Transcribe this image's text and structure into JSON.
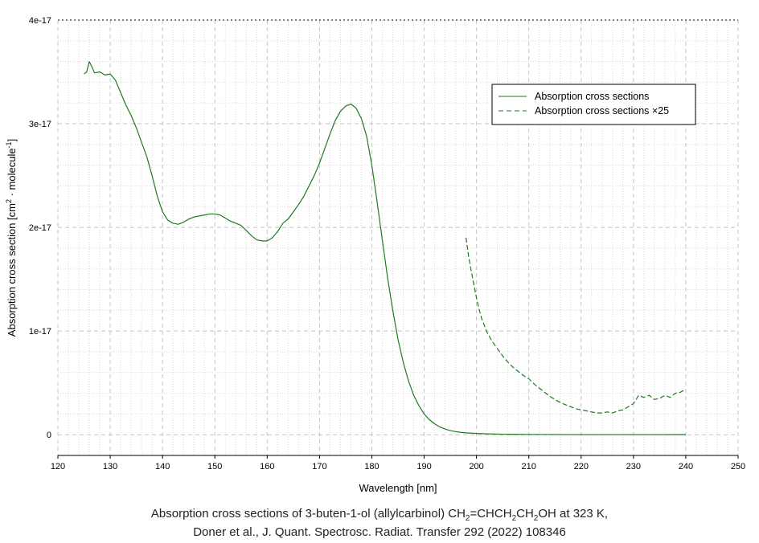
{
  "chart_data": {
    "type": "line",
    "xlabel": "Wavelength [nm]",
    "ylabel_main": "Absorption cross section [cm",
    "ylabel_sup1": "2",
    "ylabel_mid": " · molecule",
    "ylabel_sup2": "-1",
    "ylabel_end": "]",
    "xlim": [
      120,
      250
    ],
    "ylim": [
      -2e-18,
      4e-17
    ],
    "x_ticks": [
      120,
      130,
      140,
      150,
      160,
      170,
      180,
      190,
      200,
      210,
      220,
      230,
      240,
      250
    ],
    "y_ticks": [
      {
        "value": 0,
        "label": "0"
      },
      {
        "value": 1e-17,
        "label": "1e-17"
      },
      {
        "value": 2e-17,
        "label": "2e-17"
      },
      {
        "value": 3e-17,
        "label": "3e-17"
      },
      {
        "value": 4e-17,
        "label": "4e-17"
      }
    ],
    "grid": true,
    "legend_position": "top-right",
    "series": [
      {
        "name": "Absorption cross sections",
        "style": "solid",
        "color": "#1f7a1f",
        "points": [
          [
            125,
            3.48e-17
          ],
          [
            125.5,
            3.5e-17
          ],
          [
            126,
            3.6e-17
          ],
          [
            126.5,
            3.55e-17
          ],
          [
            127,
            3.49e-17
          ],
          [
            128,
            3.5e-17
          ],
          [
            129,
            3.47e-17
          ],
          [
            130,
            3.48e-17
          ],
          [
            131,
            3.42e-17
          ],
          [
            132,
            3.3e-17
          ],
          [
            133,
            3.18e-17
          ],
          [
            134,
            3.08e-17
          ],
          [
            135,
            2.96e-17
          ],
          [
            136,
            2.82e-17
          ],
          [
            137,
            2.68e-17
          ],
          [
            138,
            2.5e-17
          ],
          [
            139,
            2.3e-17
          ],
          [
            140,
            2.15e-17
          ],
          [
            141,
            2.07e-17
          ],
          [
            142,
            2.04e-17
          ],
          [
            143,
            2.03e-17
          ],
          [
            144,
            2.05e-17
          ],
          [
            145,
            2.08e-17
          ],
          [
            146,
            2.1e-17
          ],
          [
            147,
            2.11e-17
          ],
          [
            148,
            2.12e-17
          ],
          [
            149,
            2.13e-17
          ],
          [
            150,
            2.13e-17
          ],
          [
            151,
            2.12e-17
          ],
          [
            152,
            2.09e-17
          ],
          [
            153,
            2.06e-17
          ],
          [
            154,
            2.04e-17
          ],
          [
            155,
            2.02e-17
          ],
          [
            156,
            1.97e-17
          ],
          [
            157,
            1.92e-17
          ],
          [
            158,
            1.88e-17
          ],
          [
            159,
            1.87e-17
          ],
          [
            160,
            1.87e-17
          ],
          [
            161,
            1.9e-17
          ],
          [
            162,
            1.96e-17
          ],
          [
            163,
            2.04e-17
          ],
          [
            164,
            2.08e-17
          ],
          [
            165,
            2.15e-17
          ],
          [
            166,
            2.22e-17
          ],
          [
            167,
            2.3e-17
          ],
          [
            168,
            2.4e-17
          ],
          [
            169,
            2.5e-17
          ],
          [
            170,
            2.62e-17
          ],
          [
            171,
            2.76e-17
          ],
          [
            172,
            2.9e-17
          ],
          [
            173,
            3.03e-17
          ],
          [
            174,
            3.12e-17
          ],
          [
            175,
            3.17e-17
          ],
          [
            176,
            3.19e-17
          ],
          [
            177,
            3.15e-17
          ],
          [
            178,
            3.05e-17
          ],
          [
            179,
            2.88e-17
          ],
          [
            180,
            2.6e-17
          ],
          [
            181,
            2.25e-17
          ],
          [
            182,
            1.88e-17
          ],
          [
            183,
            1.52e-17
          ],
          [
            184,
            1.2e-17
          ],
          [
            185,
            9.2e-18
          ],
          [
            186,
            7e-18
          ],
          [
            187,
            5.2e-18
          ],
          [
            188,
            3.8e-18
          ],
          [
            189,
            2.8e-18
          ],
          [
            190,
            2e-18
          ],
          [
            191,
            1.45e-18
          ],
          [
            192,
            1.05e-18
          ],
          [
            193,
            7.5e-19
          ],
          [
            194,
            5.5e-19
          ],
          [
            195,
            4e-19
          ],
          [
            196,
            3e-19
          ],
          [
            197,
            2.3e-19
          ],
          [
            198,
            1.8e-19
          ],
          [
            200,
            1.2e-19
          ],
          [
            202,
            8e-20
          ],
          [
            205,
            5e-20
          ],
          [
            210,
            3e-20
          ],
          [
            215,
            2e-20
          ],
          [
            220,
            1e-20
          ],
          [
            225,
            1e-20
          ],
          [
            230,
            1e-20
          ],
          [
            235,
            1.2e-20
          ],
          [
            240,
            1.5e-20
          ]
        ]
      },
      {
        "name": "Absorption cross sections ×25",
        "style": "dashed",
        "color": "#1f7a1f",
        "points": [
          [
            198,
            1.9e-17
          ],
          [
            198.5,
            1.72e-17
          ],
          [
            199,
            1.58e-17
          ],
          [
            199.5,
            1.45e-17
          ],
          [
            200,
            1.32e-17
          ],
          [
            200.5,
            1.21e-17
          ],
          [
            201,
            1.12e-17
          ],
          [
            202,
            9.9e-18
          ],
          [
            203,
            9e-18
          ],
          [
            204,
            8.3e-18
          ],
          [
            205,
            7.6e-18
          ],
          [
            206,
            7e-18
          ],
          [
            207,
            6.5e-18
          ],
          [
            208,
            6.1e-18
          ],
          [
            209,
            5.7e-18
          ],
          [
            210,
            5.4e-18
          ],
          [
            211,
            4.9e-18
          ],
          [
            212,
            4.5e-18
          ],
          [
            213,
            4.1e-18
          ],
          [
            214,
            3.7e-18
          ],
          [
            215,
            3.4e-18
          ],
          [
            216,
            3.1e-18
          ],
          [
            217,
            2.9e-18
          ],
          [
            218,
            2.7e-18
          ],
          [
            219,
            2.5e-18
          ],
          [
            220,
            2.4e-18
          ],
          [
            221,
            2.3e-18
          ],
          [
            222,
            2.2e-18
          ],
          [
            223,
            2.1e-18
          ],
          [
            224,
            2.1e-18
          ],
          [
            225,
            2.2e-18
          ],
          [
            226,
            2.1e-18
          ],
          [
            227,
            2.3e-18
          ],
          [
            228,
            2.4e-18
          ],
          [
            229,
            2.7e-18
          ],
          [
            230,
            3e-18
          ],
          [
            231,
            3.8e-18
          ],
          [
            232,
            3.6e-18
          ],
          [
            233,
            3.8e-18
          ],
          [
            234,
            3.4e-18
          ],
          [
            235,
            3.5e-18
          ],
          [
            236,
            3.8e-18
          ],
          [
            237,
            3.6e-18
          ],
          [
            238,
            4e-18
          ],
          [
            239,
            4.1e-18
          ],
          [
            240,
            4.4e-18
          ]
        ]
      }
    ]
  },
  "caption": {
    "line1_a": "Absorption cross sections of 3-buten-1-ol (allylcarbinol) CH",
    "sub_a": "2",
    "line1_b": "=CHCH",
    "sub_b": "2",
    "line1_c": "CH",
    "sub_c": "2",
    "line1_d": "OH at 323 K,",
    "line2": "Doner et al., J. Quant. Spectrosc. Radiat. Transfer 292 (2022) 108346"
  }
}
